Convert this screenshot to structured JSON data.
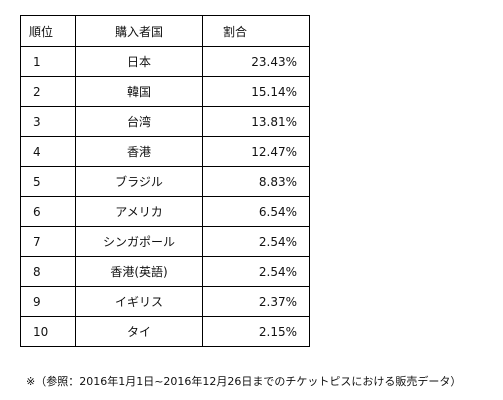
{
  "table": {
    "headers": {
      "rank": "順位",
      "country": "購入者国",
      "share": "割合"
    },
    "rows": [
      {
        "rank": "1",
        "country": "日本",
        "share": "23.43%"
      },
      {
        "rank": "2",
        "country": "韓国",
        "share": "15.14%"
      },
      {
        "rank": "3",
        "country": "台湾",
        "share": "13.81%"
      },
      {
        "rank": "4",
        "country": "香港",
        "share": "12.47%"
      },
      {
        "rank": "5",
        "country": "ブラジル",
        "share": "8.83%"
      },
      {
        "rank": "6",
        "country": "アメリカ",
        "share": "6.54%"
      },
      {
        "rank": "7",
        "country": "シンガポール",
        "share": "2.54%"
      },
      {
        "rank": "8",
        "country": "香港(英語)",
        "share": "2.54%"
      },
      {
        "rank": "9",
        "country": "イギリス",
        "share": "2.37%"
      },
      {
        "rank": "10",
        "country": "タイ",
        "share": "2.15%"
      }
    ]
  },
  "footnote": "※（参照：2016年1月1日~2016年12月26日までのチケットピスにおける販売データ）"
}
